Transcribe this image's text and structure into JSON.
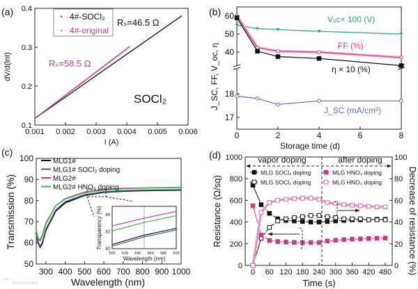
{
  "colors": {
    "black": "#111111",
    "pink": "#c93a84",
    "pink_halo": "#f0b8d6",
    "green": "#2aa57a",
    "blue": "#5b6db3",
    "grey": "#555555"
  },
  "watermark": "大数据网",
  "chart_data": [
    {
      "panel": "(a)",
      "type": "line",
      "xlabel": "I (A)",
      "ylabel": "dV/d(lnI)",
      "xlim": [
        0.001,
        0.006
      ],
      "ylim": [
        0.1,
        0.4
      ],
      "xticks": [
        "0.001",
        "0.002",
        "0.003",
        "0.004",
        "0.005",
        "0.006"
      ],
      "yticks": [
        "0.1",
        "0.2",
        "0.3",
        "0.4"
      ],
      "legend": [
        "4#-SOCl₂",
        "4#-original"
      ],
      "annotations": {
        "rs_socl2": "Rₛ=46.5  Ω",
        "rs_original": "Rₛ=58.5  Ω",
        "label": "SOCl₂"
      },
      "series": [
        {
          "name": "4#-SOCl₂",
          "points": [
            [
              0.001,
              0.117
            ],
            [
              0.0058,
              0.381
            ]
          ]
        },
        {
          "name": "4#-original",
          "points": [
            [
              0.001,
              0.117
            ],
            [
              0.0041,
              0.302
            ]
          ]
        }
      ]
    },
    {
      "panel": "(b)",
      "type": "line",
      "xlabel": "Storage time (d)",
      "ylabel": "J_SC, FF, V_oc, η",
      "x": [
        0,
        1,
        2,
        4,
        8
      ],
      "xticks": [
        "0",
        "2",
        "4",
        "6",
        "8"
      ],
      "yticks_upper": [
        "60",
        "50",
        "40"
      ],
      "yticks_lower": [
        "18",
        "17"
      ],
      "series": [
        {
          "name": "Vₒc× 100 (V)",
          "values": [
            55,
            53,
            52.5,
            51.5,
            50
          ],
          "axis": "upper"
        },
        {
          "name": "FF (%)",
          "values": [
            60,
            42.5,
            40.5,
            40,
            37
          ],
          "axis": "upper"
        },
        {
          "name": "η ×  10 (%)",
          "values": [
            59,
            40.5,
            37.5,
            36.5,
            32.5
          ],
          "axis": "upper"
        },
        {
          "name": "J_SC (mA/cm²)",
          "values": [
            17.9,
            17.8,
            17.55,
            17.7,
            17.7
          ],
          "axis": "lower"
        }
      ]
    },
    {
      "panel": "(c)",
      "type": "line",
      "xlabel": "Wavelength (nm)",
      "ylabel": "Transmission (%)",
      "xlim": [
        250,
        1000
      ],
      "ylim": [
        50,
        100
      ],
      "xticks": [
        "300",
        "400",
        "500",
        "600",
        "700",
        "800",
        "900",
        "1000"
      ],
      "yticks": [
        "50",
        "60",
        "70",
        "80",
        "90",
        "100"
      ],
      "x": [
        250,
        260,
        270,
        280,
        300,
        350,
        400,
        500,
        600,
        700,
        800,
        1000
      ],
      "series": [
        {
          "name": "MLG1#",
          "values": [
            65,
            60,
            58,
            59.5,
            66,
            75,
            79,
            82.5,
            84,
            84.5,
            84.8,
            85
          ]
        },
        {
          "name": "MLG1# SOCl₂ doping",
          "values": [
            64,
            59.5,
            58.5,
            60,
            66.5,
            75.5,
            79.5,
            82.8,
            84.2,
            84.7,
            85,
            85.2
          ]
        },
        {
          "name": "MLG2#",
          "values": [
            66,
            62,
            61,
            63,
            69,
            77.5,
            81,
            84,
            85.3,
            85.8,
            86,
            86.3
          ]
        },
        {
          "name": "MLG2# HNO₃ doping",
          "values": [
            66,
            62,
            61.5,
            63.5,
            69.5,
            77.5,
            80.8,
            83.7,
            85,
            85.6,
            85.9,
            86.2
          ]
        }
      ],
      "inset": {
        "xlabel": "Wavelength (nm)",
        "ylabel": "Transparency (%)",
        "xlim": [
          500,
          600
        ],
        "ylim": [
          80,
          85
        ],
        "xticks": [
          "500",
          "520",
          "540",
          "560",
          "580",
          "600"
        ],
        "yticks": [
          "80",
          "82",
          "84"
        ],
        "marker_x": 550,
        "x": [
          500,
          550,
          600
        ],
        "series": [
          {
            "name": "MLG1#",
            "values": [
              80.5,
              81.6,
              82.4
            ]
          },
          {
            "name": "MLG1# SOCl₂ doping",
            "values": [
              80.3,
              81.4,
              82.2
            ]
          },
          {
            "name": "MLG2#",
            "values": [
              82.7,
              83.6,
              84.4
            ]
          },
          {
            "name": "MLG2# HNO₃ doping",
            "values": [
              82.1,
              83.1,
              83.9
            ]
          }
        ]
      }
    },
    {
      "panel": "(d)",
      "type": "line",
      "xlabel": "Time (s)",
      "ylabel": "Resistance (Ω/sq)",
      "ylabel_right": "Decrease of resistance (%)",
      "xlim": [
        0,
        480
      ],
      "ylim": [
        0,
        1000
      ],
      "ylim_right": [
        0,
        100
      ],
      "xticks": [
        "0",
        "60",
        "120",
        "180",
        "240",
        "300",
        "360",
        "420",
        "480"
      ],
      "yticks": [
        "0",
        "200",
        "400",
        "600",
        "800",
        "1000"
      ],
      "yticks_right": [
        "0",
        "20",
        "40",
        "60",
        "80",
        "100"
      ],
      "regions": [
        "vapor doping",
        "after doping"
      ],
      "x": [
        0,
        30,
        60,
        90,
        120,
        150,
        180,
        210,
        240,
        270,
        300,
        330,
        360,
        390,
        420,
        450,
        480
      ],
      "series": [
        {
          "name": "MLG SOCl₂ doping",
          "kind": "resistance",
          "values": [
            740,
            560,
            480,
            430,
            415,
            410,
            405,
            400,
            400,
            405,
            410,
            415,
            420,
            420,
            420,
            425,
            425
          ]
        },
        {
          "name": "MLG SOCl₂ doping",
          "kind": "decrease",
          "values": [
            0,
            25,
            35,
            41,
            43,
            44,
            45,
            46,
            46,
            45,
            44,
            43,
            43,
            43,
            42,
            42,
            42
          ]
        },
        {
          "name": "MLG HNO₃ doping",
          "kind": "resistance",
          "values": [
            550,
            280,
            230,
            220,
            215,
            212,
            210,
            210,
            210,
            225,
            232,
            238,
            242,
            245,
            248,
            250,
            252
          ]
        },
        {
          "name": "MLG HNO₃ doping",
          "kind": "decrease",
          "values": [
            0,
            49,
            58,
            60,
            61,
            61.5,
            62,
            62,
            61,
            58,
            57,
            56,
            55.5,
            55,
            54.5,
            54,
            54
          ]
        }
      ]
    }
  ]
}
